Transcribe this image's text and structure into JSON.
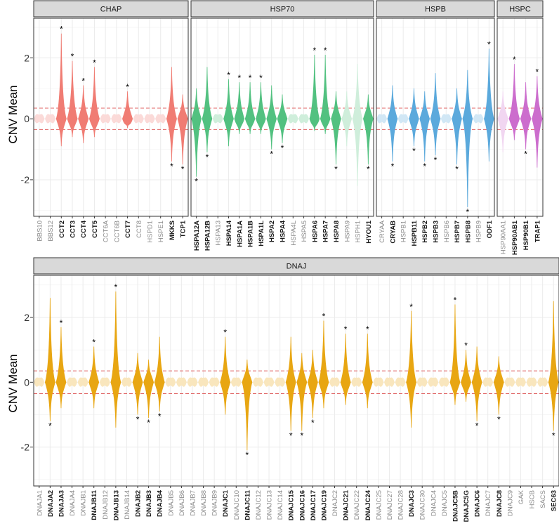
{
  "chart_data": [
    {
      "type": "violin",
      "ylabel": "CNV Mean",
      "yticks": [
        -2,
        0,
        2
      ],
      "ylim": [
        -3.2,
        3.3
      ],
      "reference_lines": [
        0.35,
        -0.35
      ],
      "colors": {
        "CHAP": "#f07c73",
        "HSP70": "#52c180",
        "HSPB": "#5ba9dc",
        "HSPC": "#cc6dcd",
        "ref_line": "#e06666"
      },
      "panels": [
        {
          "title": "CHAP",
          "family": "CHAP",
          "genes": [
            {
              "name": "BBS10",
              "sig": false,
              "min": -0.1,
              "max": 0.15,
              "star": null
            },
            {
              "name": "BBS12",
              "sig": false,
              "min": -0.1,
              "max": 0.15,
              "star": null
            },
            {
              "name": "CCT2",
              "sig": true,
              "min": -0.9,
              "max": 2.8,
              "star": "top"
            },
            {
              "name": "CCT3",
              "sig": true,
              "min": -0.6,
              "max": 1.9,
              "star": "top"
            },
            {
              "name": "CCT4",
              "sig": true,
              "min": -0.8,
              "max": 1.1,
              "star": "top"
            },
            {
              "name": "CCT5",
              "sig": true,
              "min": -0.6,
              "max": 1.7,
              "star": "top"
            },
            {
              "name": "CCT6A",
              "sig": false,
              "min": -0.1,
              "max": 0.15,
              "star": null
            },
            {
              "name": "CCT6B",
              "sig": false,
              "min": -0.1,
              "max": 0.15,
              "star": null
            },
            {
              "name": "CCT7",
              "sig": true,
              "min": -0.3,
              "max": 0.9,
              "star": "top"
            },
            {
              "name": "CCT8",
              "sig": false,
              "min": -0.1,
              "max": 0.15,
              "star": null
            },
            {
              "name": "HSPD1",
              "sig": false,
              "min": -0.1,
              "max": 0.15,
              "star": null
            },
            {
              "name": "HSPE1",
              "sig": false,
              "min": -0.1,
              "max": 0.15,
              "star": null
            },
            {
              "name": "MKKS",
              "sig": true,
              "min": -1.4,
              "max": 1.7,
              "star": "bottom"
            },
            {
              "name": "TCP1",
              "sig": true,
              "min": -1.5,
              "max": 0.8,
              "star": "bottom"
            }
          ]
        },
        {
          "title": "HSP70",
          "family": "HSP70",
          "genes": [
            {
              "name": "HSPA12A",
              "sig": true,
              "min": -1.9,
              "max": 1.0,
              "star": "bottom"
            },
            {
              "name": "HSPA12B",
              "sig": true,
              "min": -1.1,
              "max": 1.7,
              "star": "bottom"
            },
            {
              "name": "HSPA13",
              "sig": false,
              "min": -0.1,
              "max": 0.15,
              "star": null
            },
            {
              "name": "HSPA14",
              "sig": true,
              "min": -0.9,
              "max": 1.3,
              "star": "top"
            },
            {
              "name": "HSPA1A",
              "sig": true,
              "min": -0.5,
              "max": 1.2,
              "star": "top"
            },
            {
              "name": "HSPA1B",
              "sig": true,
              "min": -0.5,
              "max": 1.2,
              "star": "top"
            },
            {
              "name": "HSPA1L",
              "sig": true,
              "min": -0.5,
              "max": 1.2,
              "star": "top"
            },
            {
              "name": "HSPA2",
              "sig": true,
              "min": -1.0,
              "max": 1.1,
              "star": "bottom"
            },
            {
              "name": "HSPA4",
              "sig": true,
              "min": -0.8,
              "max": 0.8,
              "star": "bottom"
            },
            {
              "name": "HSPA4L",
              "sig": false,
              "min": -0.1,
              "max": 0.15,
              "star": null
            },
            {
              "name": "HSPA5",
              "sig": false,
              "min": -0.1,
              "max": 0.15,
              "star": null
            },
            {
              "name": "HSPA6",
              "sig": true,
              "min": -0.4,
              "max": 2.1,
              "star": "top"
            },
            {
              "name": "HSPA7",
              "sig": true,
              "min": -0.5,
              "max": 2.1,
              "star": "top"
            },
            {
              "name": "HSPA8",
              "sig": true,
              "min": -1.5,
              "max": 0.9,
              "star": "bottom"
            },
            {
              "name": "HSPA9",
              "sig": false,
              "min": -0.9,
              "max": 0.9,
              "star": null
            },
            {
              "name": "HSPH1",
              "sig": false,
              "min": -2.2,
              "max": 1.8,
              "star": null
            },
            {
              "name": "HYOU1",
              "sig": true,
              "min": -1.5,
              "max": 0.8,
              "star": "bottom"
            }
          ]
        },
        {
          "title": "HSPB",
          "family": "HSPB",
          "genes": [
            {
              "name": "CRYAA",
              "sig": false,
              "min": -0.1,
              "max": 0.15,
              "star": null
            },
            {
              "name": "CRYAB",
              "sig": true,
              "min": -1.4,
              "max": 1.1,
              "star": "bottom"
            },
            {
              "name": "HSPB1",
              "sig": false,
              "min": -0.1,
              "max": 0.15,
              "star": null
            },
            {
              "name": "HSPB11",
              "sig": true,
              "min": -0.9,
              "max": 1.0,
              "star": "bottom"
            },
            {
              "name": "HSPB2",
              "sig": true,
              "min": -1.4,
              "max": 0.9,
              "star": "bottom"
            },
            {
              "name": "HSPB3",
              "sig": true,
              "min": -1.2,
              "max": 1.5,
              "star": "bottom"
            },
            {
              "name": "HSPB6",
              "sig": false,
              "min": -0.1,
              "max": 0.15,
              "star": null
            },
            {
              "name": "HSPB7",
              "sig": true,
              "min": -1.5,
              "max": 1.0,
              "star": "bottom"
            },
            {
              "name": "HSPB8",
              "sig": true,
              "min": -2.9,
              "max": 1.6,
              "star": "bottom"
            },
            {
              "name": "HSPB9",
              "sig": false,
              "min": -0.1,
              "max": 0.15,
              "star": null
            },
            {
              "name": "ODF1",
              "sig": true,
              "min": -1.4,
              "max": 2.3,
              "star": "top"
            }
          ]
        },
        {
          "title": "HSPC",
          "family": "HSPC",
          "genes": [
            {
              "name": "HSP90AA1",
              "sig": false,
              "min": -1.1,
              "max": 0.9,
              "star": null
            },
            {
              "name": "HSP90AB1",
              "sig": true,
              "min": -0.7,
              "max": 1.8,
              "star": "top"
            },
            {
              "name": "HSP90B1",
              "sig": true,
              "min": -1.0,
              "max": 1.2,
              "star": "bottom"
            },
            {
              "name": "TRAP1",
              "sig": true,
              "min": -1.6,
              "max": 1.4,
              "star": "top"
            }
          ]
        }
      ]
    },
    {
      "type": "violin",
      "ylabel": "CNV Mean",
      "yticks": [
        -2,
        0,
        2
      ],
      "ylim": [
        -3.2,
        3.3
      ],
      "reference_lines": [
        0.35,
        -0.35
      ],
      "colors": {
        "DNAJ": "#e8a612",
        "ref_line": "#e06666"
      },
      "panels": [
        {
          "title": "DNAJ",
          "family": "DNAJ",
          "genes": [
            {
              "name": "DNAJA1",
              "sig": false,
              "min": -0.1,
              "max": 0.15,
              "star": null
            },
            {
              "name": "DNAJA2",
              "sig": true,
              "min": -1.2,
              "max": 2.6,
              "star": "bottom"
            },
            {
              "name": "DNAJA3",
              "sig": true,
              "min": -0.8,
              "max": 1.7,
              "star": "top"
            },
            {
              "name": "DNAJA4",
              "sig": false,
              "min": -0.1,
              "max": 0.15,
              "star": null
            },
            {
              "name": "DNAJB1",
              "sig": false,
              "min": -0.1,
              "max": 0.15,
              "star": null
            },
            {
              "name": "DNAJB11",
              "sig": true,
              "min": -0.8,
              "max": 1.1,
              "star": "top"
            },
            {
              "name": "DNAJB12",
              "sig": false,
              "min": -0.1,
              "max": 0.15,
              "star": null
            },
            {
              "name": "DNAJB13",
              "sig": true,
              "min": -1.4,
              "max": 2.8,
              "star": "top"
            },
            {
              "name": "DNAJB14",
              "sig": false,
              "min": -0.1,
              "max": 0.15,
              "star": null
            },
            {
              "name": "DNAJB2",
              "sig": true,
              "min": -1.0,
              "max": 0.9,
              "star": "bottom"
            },
            {
              "name": "DNAJB3",
              "sig": true,
              "min": -1.1,
              "max": 0.7,
              "star": "bottom"
            },
            {
              "name": "DNAJB4",
              "sig": true,
              "min": -0.9,
              "max": 1.4,
              "star": "bottom"
            },
            {
              "name": "DNAJB5",
              "sig": false,
              "min": -0.1,
              "max": 0.15,
              "star": null
            },
            {
              "name": "DNAJB6",
              "sig": false,
              "min": -0.1,
              "max": 0.15,
              "star": null
            },
            {
              "name": "DNAJB7",
              "sig": false,
              "min": -0.1,
              "max": 0.15,
              "star": null
            },
            {
              "name": "DNAJB8",
              "sig": false,
              "min": -0.1,
              "max": 0.15,
              "star": null
            },
            {
              "name": "DNAJB9",
              "sig": false,
              "min": -0.1,
              "max": 0.15,
              "star": null
            },
            {
              "name": "DNAJC1",
              "sig": true,
              "min": -1.0,
              "max": 1.4,
              "star": "top"
            },
            {
              "name": "DNAJC10",
              "sig": false,
              "min": -0.1,
              "max": 0.15,
              "star": null
            },
            {
              "name": "DNAJC11",
              "sig": true,
              "min": -2.1,
              "max": 0.7,
              "star": "bottom"
            },
            {
              "name": "DNAJC12",
              "sig": false,
              "min": -0.1,
              "max": 0.15,
              "star": null
            },
            {
              "name": "DNAJC13",
              "sig": false,
              "min": -0.1,
              "max": 0.15,
              "star": null
            },
            {
              "name": "DNAJC14",
              "sig": false,
              "min": -0.1,
              "max": 0.15,
              "star": null
            },
            {
              "name": "DNAJC15",
              "sig": true,
              "min": -1.5,
              "max": 1.4,
              "star": "bottom"
            },
            {
              "name": "DNAJC16",
              "sig": true,
              "min": -1.5,
              "max": 0.9,
              "star": "bottom"
            },
            {
              "name": "DNAJC17",
              "sig": true,
              "min": -1.1,
              "max": 1.0,
              "star": "bottom"
            },
            {
              "name": "DNAJC19",
              "sig": true,
              "min": -0.8,
              "max": 1.9,
              "star": "top"
            },
            {
              "name": "DNAJC2",
              "sig": false,
              "min": -0.1,
              "max": 0.15,
              "star": null
            },
            {
              "name": "DNAJC21",
              "sig": true,
              "min": -0.7,
              "max": 1.5,
              "star": "top"
            },
            {
              "name": "DNAJC22",
              "sig": false,
              "min": -0.1,
              "max": 0.15,
              "star": null
            },
            {
              "name": "DNAJC24",
              "sig": true,
              "min": -0.8,
              "max": 1.5,
              "star": "top"
            },
            {
              "name": "DNAJC25",
              "sig": false,
              "min": -0.1,
              "max": 0.15,
              "star": null
            },
            {
              "name": "DNAJC27",
              "sig": false,
              "min": -0.1,
              "max": 0.15,
              "star": null
            },
            {
              "name": "DNAJC28",
              "sig": false,
              "min": -0.1,
              "max": 0.15,
              "star": null
            },
            {
              "name": "DNAJC3",
              "sig": true,
              "min": -1.4,
              "max": 2.2,
              "star": "top"
            },
            {
              "name": "DNAJC30",
              "sig": false,
              "min": -0.1,
              "max": 0.15,
              "star": null
            },
            {
              "name": "DNAJC4",
              "sig": false,
              "min": -0.1,
              "max": 0.15,
              "star": null
            },
            {
              "name": "DNAJC5",
              "sig": false,
              "min": -0.1,
              "max": 0.15,
              "star": null
            },
            {
              "name": "DNAJC5B",
              "sig": true,
              "min": -0.7,
              "max": 2.4,
              "star": "top"
            },
            {
              "name": "DNAJC5G",
              "sig": true,
              "min": -0.6,
              "max": 1.0,
              "star": "top"
            },
            {
              "name": "DNAJC6",
              "sig": true,
              "min": -1.2,
              "max": 1.1,
              "star": "bottom"
            },
            {
              "name": "DNAJC7",
              "sig": false,
              "min": -0.1,
              "max": 0.15,
              "star": null
            },
            {
              "name": "DNAJC8",
              "sig": true,
              "min": -1.0,
              "max": 0.8,
              "star": "bottom"
            },
            {
              "name": "DNAJC9",
              "sig": false,
              "min": -0.1,
              "max": 0.15,
              "star": null
            },
            {
              "name": "GAK",
              "sig": false,
              "min": -0.1,
              "max": 0.15,
              "star": null
            },
            {
              "name": "HSCB",
              "sig": false,
              "min": -0.1,
              "max": 0.15,
              "star": null
            },
            {
              "name": "SACS",
              "sig": false,
              "min": -0.1,
              "max": 0.15,
              "star": null
            },
            {
              "name": "SEC63",
              "sig": true,
              "min": -1.5,
              "max": 2.5,
              "star": "bottom"
            }
          ]
        }
      ]
    }
  ],
  "star_symbol": "*"
}
